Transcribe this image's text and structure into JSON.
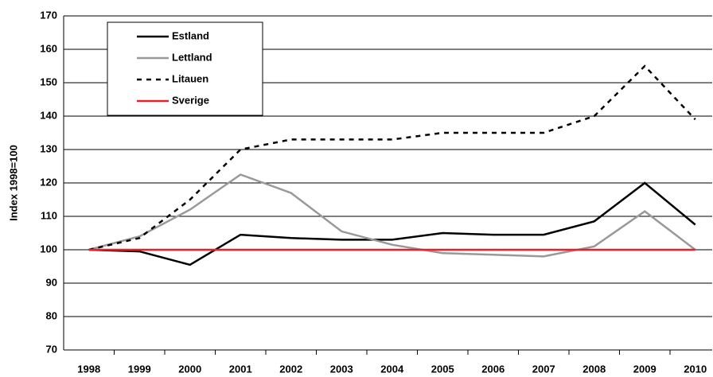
{
  "chart_data": {
    "type": "line",
    "y_label": "Index 1998=100",
    "categories": [
      "1998",
      "1999",
      "2000",
      "2001",
      "2002",
      "2003",
      "2004",
      "2005",
      "2006",
      "2007",
      "2008",
      "2009",
      "2010"
    ],
    "series": [
      {
        "name": "Estland",
        "color": "#000000",
        "dash": false,
        "values": [
          100,
          99.5,
          95.5,
          104.5,
          103.5,
          103,
          103,
          105,
          104.5,
          104.5,
          108.5,
          120,
          107.5
        ]
      },
      {
        "name": "Lettland",
        "color": "#999999",
        "dash": false,
        "values": [
          100,
          104,
          112,
          122.5,
          117,
          105.5,
          101.5,
          99,
          98.5,
          98,
          101,
          111.5,
          100
        ]
      },
      {
        "name": "Litauen",
        "color": "#000000",
        "dash": true,
        "values": [
          100,
          103.5,
          115,
          130,
          133,
          133,
          133,
          135,
          135,
          135,
          140,
          155,
          139
        ]
      },
      {
        "name": "Sverige",
        "color": "#e8202a",
        "dash": false,
        "values": [
          100,
          100,
          100,
          100,
          100,
          100,
          100,
          100,
          100,
          100,
          100,
          100,
          100
        ]
      }
    ],
    "ylim": [
      70,
      170
    ],
    "yticks": [
      70,
      80,
      90,
      100,
      110,
      120,
      130,
      140,
      150,
      160,
      170
    ],
    "grid": true
  }
}
